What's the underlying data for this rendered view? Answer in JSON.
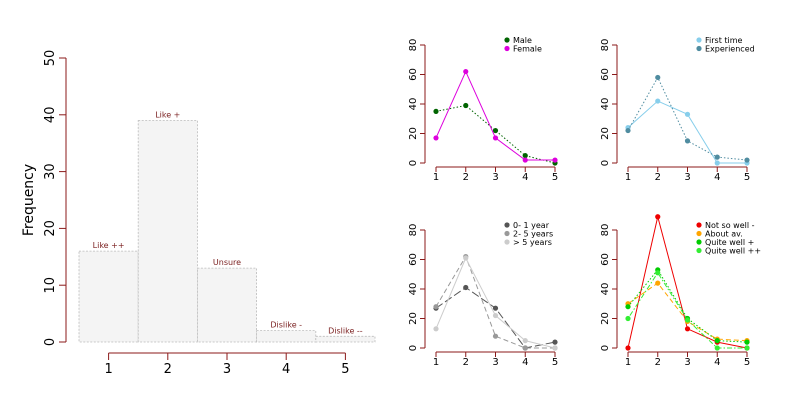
{
  "chart_data": [
    {
      "type": "bar",
      "ylabel": "Frequency",
      "categories": [
        "1",
        "2",
        "3",
        "4",
        "5"
      ],
      "values": [
        16,
        39,
        13,
        2,
        1
      ],
      "bar_labels": [
        "Like ++",
        "Like +",
        "Unsure",
        "Dislike -",
        "Dislike --"
      ],
      "ylim": [
        0,
        50
      ],
      "yticks": [
        0,
        10,
        20,
        30,
        40,
        50
      ],
      "grid": false,
      "colors": {
        "bar_fill": "#f4f4f4",
        "bar_stroke": "#bbbbbb",
        "axis": "#8b1a1a",
        "label": "#7a1f1f"
      }
    },
    {
      "type": "line",
      "x": [
        1,
        2,
        3,
        4,
        5
      ],
      "ylim": [
        0,
        80
      ],
      "yticks": [
        0,
        20,
        40,
        60,
        80
      ],
      "legend_position": "top-right",
      "series": [
        {
          "name": "Male",
          "values": [
            35,
            39,
            22,
            5,
            0
          ],
          "color": "#006400",
          "dash": "dotted"
        },
        {
          "name": "Female",
          "values": [
            17,
            62,
            17,
            2,
            2
          ],
          "color": "#dd00dd",
          "dash": "solid"
        }
      ]
    },
    {
      "type": "line",
      "x": [
        1,
        2,
        3,
        4,
        5
      ],
      "ylim": [
        0,
        80
      ],
      "yticks": [
        0,
        20,
        40,
        60,
        80
      ],
      "legend_position": "top-right",
      "series": [
        {
          "name": "First time",
          "values": [
            24,
            42,
            33,
            0,
            0
          ],
          "color": "#87ceeb",
          "dash": "solid"
        },
        {
          "name": "Experienced",
          "values": [
            22,
            58,
            15,
            4,
            2
          ],
          "color": "#4f8ca0",
          "dash": "dotted"
        }
      ]
    },
    {
      "type": "line",
      "x": [
        1,
        2,
        3,
        4,
        5
      ],
      "ylim": [
        0,
        80
      ],
      "yticks": [
        0,
        20,
        40,
        60,
        80
      ],
      "legend_position": "top-right",
      "series": [
        {
          "name": "0- 1 year",
          "values": [
            27,
            41,
            27,
            0,
            4
          ],
          "color": "#555555",
          "dash": "longdash"
        },
        {
          "name": "2- 5 years",
          "values": [
            28,
            62,
            8,
            0,
            0
          ],
          "color": "#999999",
          "dash": "dashed"
        },
        {
          "name": "> 5 years",
          "values": [
            13,
            61,
            22,
            5,
            0
          ],
          "color": "#cccccc",
          "dash": "solid"
        }
      ]
    },
    {
      "type": "line",
      "x": [
        1,
        2,
        3,
        4,
        5
      ],
      "ylim": [
        0,
        80
      ],
      "yticks": [
        0,
        20,
        40,
        60,
        80
      ],
      "legend_position": "top-right",
      "series": [
        {
          "name": "Not so well -",
          "values": [
            0,
            89,
            13,
            4,
            0
          ],
          "color": "#ee0000",
          "dash": "solid"
        },
        {
          "name": "About av.",
          "values": [
            30,
            44,
            18,
            6,
            5
          ],
          "color": "#ffa500",
          "dash": "dashed"
        },
        {
          "name": "Quite well +",
          "values": [
            28,
            53,
            20,
            5,
            4
          ],
          "color": "#00cc00",
          "dash": "dotted"
        },
        {
          "name": "Quite well ++",
          "values": [
            20,
            51,
            19,
            0,
            0
          ],
          "color": "#33ee33",
          "dash": "dotdash"
        }
      ]
    }
  ]
}
